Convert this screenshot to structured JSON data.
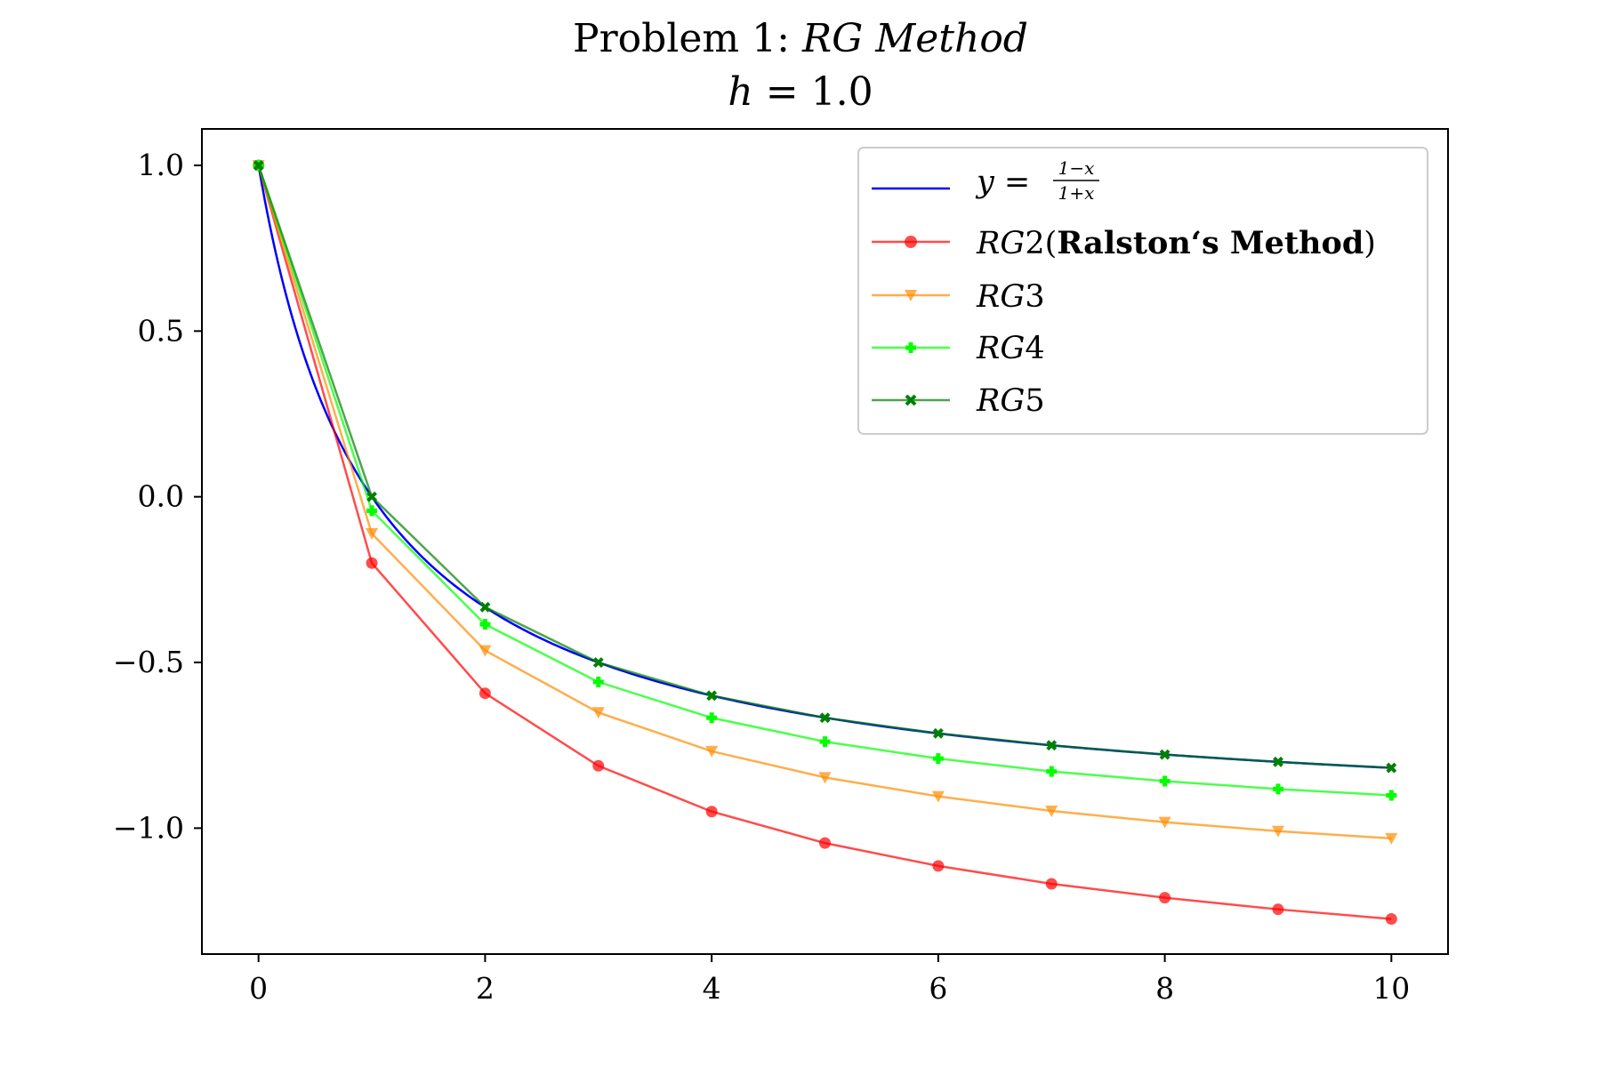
{
  "chart_data": {
    "type": "line",
    "title_prefix": "Problem 1: ",
    "title_method": "RG Method",
    "subtitle_var": "h",
    "subtitle_rest": " = 1.0",
    "xlabel": "",
    "ylabel": "",
    "xlim": [
      -0.5,
      10.5
    ],
    "ylim": [
      -1.38,
      1.11
    ],
    "xticks": [
      0,
      2,
      4,
      6,
      8,
      10
    ],
    "yticks": [
      1.0,
      0.5,
      0.0,
      -0.5,
      -1.0
    ],
    "ytick_labels": [
      "1.0",
      "0.5",
      "0.0",
      "−0.5",
      "−1.0"
    ],
    "grid": false,
    "legend_position": "top-right",
    "x": [
      0,
      1,
      2,
      3,
      4,
      5,
      6,
      7,
      8,
      9,
      10
    ],
    "exact": {
      "legend_lhs": "y = ",
      "legend_num": "1−x",
      "legend_den": "1+x",
      "color": "#0000ff",
      "x_start": 0,
      "x_end": 10
    },
    "series": [
      {
        "legend_italic": "RG",
        "legend_num": "2",
        "legend_open": "(",
        "legend_bold": "Ralston‘s Method",
        "legend_close": ")",
        "color": "#ff0000",
        "marker": "circle",
        "values": [
          1.0,
          -0.2,
          -0.593,
          -0.812,
          -0.95,
          -1.045,
          -1.114,
          -1.168,
          -1.21,
          -1.245,
          -1.274
        ]
      },
      {
        "legend_italic": "RG",
        "legend_num": "3",
        "color": "#ff8c00",
        "marker": "triangle-down",
        "values": [
          1.0,
          -0.111,
          -0.464,
          -0.651,
          -0.768,
          -0.847,
          -0.904,
          -0.948,
          -0.982,
          -1.009,
          -1.031
        ]
      },
      {
        "legend_italic": "RG",
        "legend_num": "4",
        "color": "#00ff00",
        "marker": "plus",
        "values": [
          1.0,
          -0.042,
          -0.385,
          -0.559,
          -0.667,
          -0.739,
          -0.79,
          -0.829,
          -0.858,
          -0.882,
          -0.901
        ]
      },
      {
        "legend_italic": "RG",
        "legend_num": "5",
        "color": "#008000",
        "marker": "x",
        "values": [
          1.0,
          0.0,
          -0.333,
          -0.5,
          -0.6,
          -0.667,
          -0.714,
          -0.75,
          -0.778,
          -0.8,
          -0.818
        ]
      }
    ]
  }
}
